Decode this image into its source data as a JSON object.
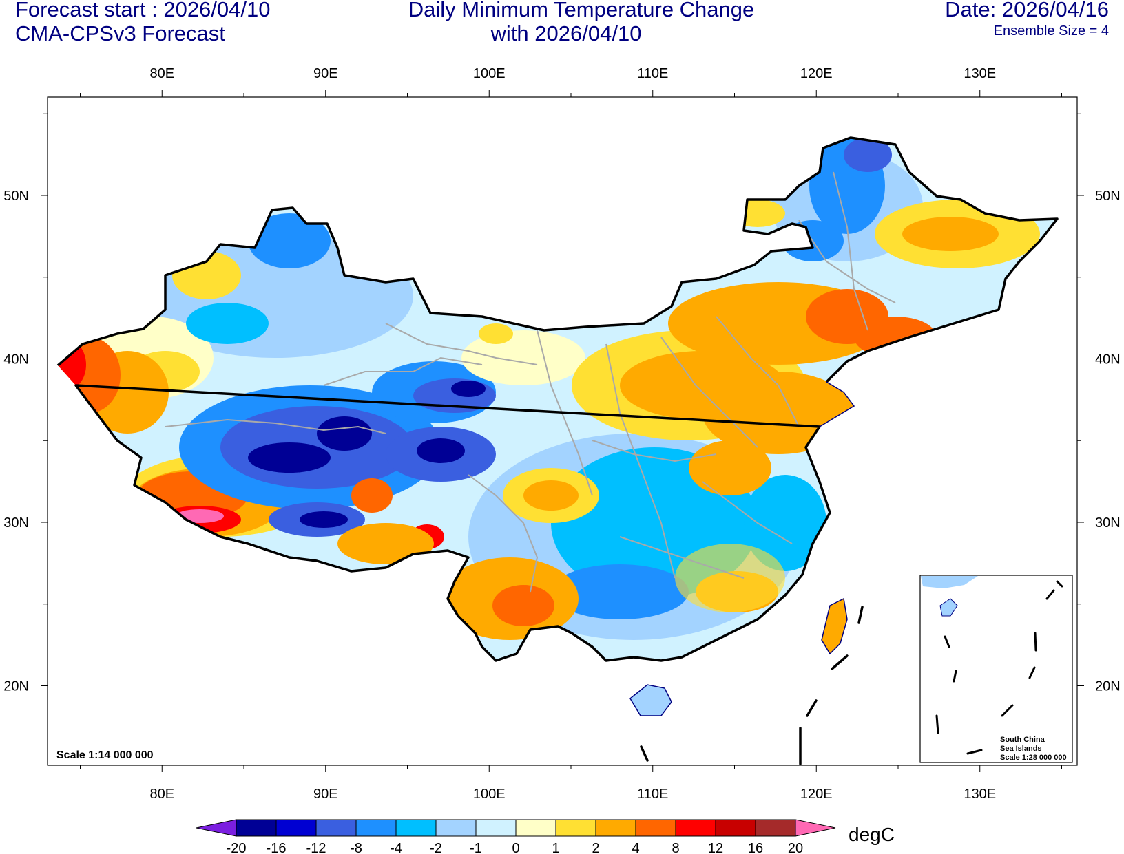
{
  "header": {
    "forecast_start": "Forecast start : 2026/04/10",
    "model": "CMA-CPSv3 Forecast",
    "title_line1": "Daily Minimum Temperature Change",
    "title_line2": "with 2026/04/10",
    "date": "Date: 2026/04/16",
    "ensemble": "Ensemble Size = 4"
  },
  "axes": {
    "lon_labels": [
      "80E",
      "90E",
      "100E",
      "110E",
      "120E",
      "130E"
    ],
    "lat_labels": [
      "50N",
      "40N",
      "30N",
      "20N"
    ]
  },
  "map": {
    "scale": "Scale 1:14 000 000",
    "inset_label_1": "South China",
    "inset_label_2": "Sea Islands",
    "inset_scale": "Scale 1:28 000 000"
  },
  "colorbar": {
    "unit": "degC",
    "ticks": [
      "-20",
      "-16",
      "-12",
      "-8",
      "-4",
      "-2",
      "-1",
      "0",
      "1",
      "2",
      "4",
      "8",
      "12",
      "16",
      "20"
    ],
    "colors": [
      "#7b1fe0",
      "#000095",
      "#0000d2",
      "#3a5fe0",
      "#1e90ff",
      "#00bfff",
      "#a3d3ff",
      "#d0f2ff",
      "#ffffc8",
      "#ffe033",
      "#ffaa00",
      "#ff6600",
      "#ff0000",
      "#c80000",
      "#a52a2a",
      "#ff69b4"
    ]
  }
}
